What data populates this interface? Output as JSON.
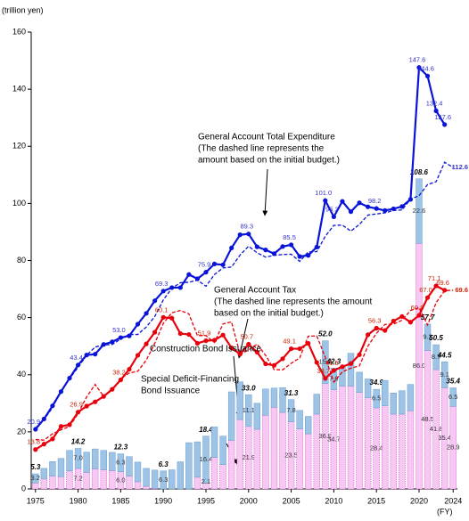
{
  "chart_data": {
    "type": "combo",
    "y_unit": "(trillion yen)",
    "x_unit": "(FY)",
    "x": [
      1975,
      1976,
      1977,
      1978,
      1979,
      1980,
      1981,
      1982,
      1983,
      1984,
      1985,
      1986,
      1987,
      1988,
      1989,
      1990,
      1991,
      1992,
      1993,
      1994,
      1995,
      1996,
      1997,
      1998,
      1999,
      2000,
      2001,
      2002,
      2003,
      2004,
      2005,
      2006,
      2007,
      2008,
      2009,
      2010,
      2011,
      2012,
      2013,
      2014,
      2015,
      2016,
      2017,
      2018,
      2019,
      2020,
      2021,
      2022,
      2023,
      2024
    ],
    "xlim": [
      1974.5,
      2024.5
    ],
    "xticks": [
      1975,
      1980,
      1985,
      1990,
      1995,
      2000,
      2005,
      2010,
      2015,
      2020,
      2024
    ],
    "ylim": [
      0,
      160
    ],
    "yticks": [
      0,
      20,
      40,
      60,
      80,
      100,
      120,
      140,
      160
    ],
    "series": [
      {
        "kind": "line",
        "style": "solid",
        "color": "#0a14d8",
        "label_color": "#3333cc",
        "values": [
          20.9,
          24.5,
          29.1,
          34.1,
          38.8,
          43.4,
          46.9,
          47.2,
          50.6,
          51.5,
          53.0,
          53.6,
          57.7,
          61.5,
          65.9,
          69.3,
          70.5,
          70.5,
          75.1,
          73.6,
          75.9,
          78.8,
          78.5,
          84.4,
          89.0,
          89.3,
          84.8,
          83.7,
          82.4,
          84.9,
          85.5,
          81.4,
          81.8,
          84.7,
          101.0,
          95.3,
          100.7,
          97.1,
          100.2,
          98.8,
          98.2,
          97.5,
          98.1,
          98.9,
          101.4,
          147.6,
          144.6,
          132.4,
          127.6,
          null
        ],
        "value_labels": [
          "20.9",
          null,
          null,
          null,
          null,
          "43.4",
          null,
          null,
          null,
          null,
          "53.0",
          null,
          null,
          null,
          null,
          "69.3",
          null,
          null,
          null,
          null,
          "75.9",
          null,
          null,
          null,
          null,
          "89.3",
          null,
          null,
          null,
          null,
          "85.5",
          null,
          null,
          null,
          "101.0",
          "95.3",
          null,
          null,
          null,
          null,
          "98.2",
          null,
          null,
          null,
          null,
          "147.6",
          "144.6",
          "132.4",
          "127.6",
          null
        ]
      },
      {
        "kind": "line",
        "style": "dashed",
        "color": "#0a14d8",
        "label_color": "#3333cc",
        "values": [
          21.3,
          24.3,
          28.5,
          34.3,
          38.6,
          42.6,
          46.8,
          49.7,
          50.4,
          50.6,
          52.5,
          54.1,
          54.1,
          56.7,
          60.4,
          66.2,
          70.3,
          72.2,
          72.4,
          73.1,
          71.0,
          75.1,
          77.4,
          77.7,
          81.9,
          85.0,
          82.7,
          81.2,
          81.8,
          82.1,
          82.2,
          79.7,
          83.0,
          83.1,
          88.5,
          92.3,
          92.4,
          90.3,
          92.6,
          95.9,
          96.3,
          96.7,
          97.5,
          97.7,
          101.5,
          102.7,
          106.6,
          107.6,
          114.4,
          112.6
        ],
        "value_labels": [
          null,
          null,
          null,
          null,
          null,
          null,
          null,
          null,
          null,
          null,
          null,
          null,
          null,
          null,
          null,
          null,
          null,
          null,
          null,
          null,
          null,
          null,
          null,
          null,
          null,
          null,
          null,
          null,
          null,
          null,
          null,
          null,
          null,
          null,
          null,
          null,
          null,
          null,
          null,
          null,
          null,
          null,
          null,
          null,
          null,
          null,
          null,
          null,
          null,
          "112.6"
        ]
      },
      {
        "kind": "line",
        "style": "solid",
        "color": "#e8000b",
        "label_color": "#cc2200",
        "values": [
          13.8,
          15.7,
          17.5,
          21.9,
          22.5,
          26.9,
          29.0,
          30.5,
          32.4,
          34.9,
          38.2,
          41.9,
          46.8,
          50.8,
          54.9,
          60.1,
          59.8,
          54.4,
          54.1,
          51.0,
          51.9,
          52.1,
          53.9,
          49.4,
          47.2,
          50.7,
          47.9,
          43.8,
          43.3,
          45.6,
          49.1,
          49.1,
          51.0,
          44.3,
          38.7,
          41.5,
          42.8,
          43.9,
          47.0,
          54.0,
          56.3,
          55.5,
          58.8,
          60.4,
          58.4,
          60.8,
          67.0,
          71.1,
          69.6,
          null
        ],
        "value_labels": [
          "13.8",
          null,
          null,
          null,
          null,
          "26.9",
          null,
          null,
          null,
          null,
          "38.2",
          null,
          null,
          null,
          null,
          "60.1",
          null,
          null,
          null,
          null,
          "51.9",
          null,
          null,
          null,
          null,
          "50.7",
          null,
          null,
          null,
          null,
          "49.1",
          null,
          null,
          null,
          "38.7",
          "41.5",
          null,
          null,
          null,
          null,
          "56.3",
          null,
          null,
          null,
          null,
          "60.8",
          "67.0",
          "71.1",
          "69.6",
          null
        ]
      },
      {
        "kind": "line",
        "style": "dashed",
        "color": "#e8000b",
        "label_color": "#cc2200",
        "values": [
          17.3,
          17.1,
          19.3,
          20.7,
          21.9,
          26.4,
          32.2,
          36.6,
          32.4,
          34.6,
          38.6,
          40.6,
          41.2,
          45.1,
          51.0,
          58.0,
          61.7,
          62.5,
          61.3,
          53.7,
          53.7,
          51.3,
          57.8,
          58.5,
          47.1,
          48.7,
          50.7,
          46.8,
          41.8,
          41.7,
          44.0,
          45.9,
          53.5,
          53.6,
          46.1,
          37.4,
          41.0,
          42.3,
          43.1,
          50.0,
          54.5,
          57.6,
          57.7,
          59.1,
          62.5,
          63.5,
          57.4,
          65.2,
          69.4,
          69.6
        ],
        "value_labels": [
          null,
          null,
          null,
          null,
          null,
          null,
          null,
          null,
          null,
          null,
          null,
          null,
          null,
          null,
          null,
          null,
          null,
          null,
          null,
          null,
          null,
          null,
          null,
          null,
          null,
          null,
          null,
          null,
          null,
          null,
          null,
          null,
          null,
          null,
          null,
          null,
          null,
          null,
          null,
          null,
          null,
          null,
          null,
          null,
          null,
          null,
          null,
          null,
          null,
          "69.6"
        ]
      }
    ],
    "bars": {
      "deficit": {
        "color": "#f7c8f2",
        "edge": "#cc33cc",
        "values": [
          2.1,
          3.5,
          4.5,
          4.3,
          6.3,
          7.2,
          5.8,
          7.0,
          6.7,
          6.4,
          6.0,
          4.5,
          2.5,
          0.9,
          0.2,
          0,
          0,
          0,
          0,
          4.1,
          2.1,
          11.0,
          8.5,
          17.0,
          24.3,
          21.9,
          20.9,
          25.8,
          28.6,
          26.8,
          23.5,
          21.0,
          19.3,
          26.2,
          36.9,
          34.7,
          36.0,
          36.0,
          33.8,
          31.9,
          28.4,
          29.1,
          26.2,
          26.2,
          27.4,
          86.0,
          48.5,
          41.8,
          35.4,
          28.9
        ],
        "value_labels": [
          null,
          null,
          null,
          null,
          null,
          "7.2",
          null,
          null,
          null,
          null,
          "6.0",
          null,
          null,
          null,
          null,
          null,
          null,
          null,
          null,
          null,
          "2.1",
          null,
          null,
          null,
          null,
          "21.9",
          null,
          null,
          null,
          null,
          "23.5",
          null,
          null,
          null,
          "36.9",
          "34.7",
          null,
          null,
          null,
          null,
          "28.4",
          null,
          null,
          null,
          null,
          "86.0",
          "48.5",
          "41.8",
          "35.4",
          "28.9"
        ]
      },
      "construction": {
        "color": "#9dc3e6",
        "edge": "#6a9ccc",
        "values": [
          3.2,
          3.7,
          5.1,
          6.4,
          7.2,
          7.0,
          7.1,
          7.0,
          6.8,
          6.4,
          6.3,
          6.8,
          6.9,
          6.3,
          6.4,
          6.3,
          6.7,
          9.5,
          16.2,
          12.4,
          16.4,
          10.7,
          10.0,
          17.0,
          13.2,
          11.1,
          9.1,
          9.2,
          6.7,
          8.7,
          7.8,
          6.5,
          6.1,
          7.0,
          15.0,
          7.6,
          6.8,
          11.5,
          7.1,
          6.6,
          6.5,
          8.9,
          7.4,
          8.2,
          9.2,
          22.6,
          9.2,
          8.7,
          9.1,
          6.5
        ],
        "value_labels": [
          "3.2",
          null,
          null,
          null,
          null,
          "7.0",
          null,
          null,
          null,
          null,
          "6.3",
          null,
          null,
          null,
          null,
          "6.3",
          null,
          null,
          null,
          null,
          "16.4",
          null,
          null,
          null,
          null,
          "11.1",
          null,
          null,
          null,
          null,
          "7.8",
          null,
          null,
          null,
          "15.0",
          "7.6",
          null,
          null,
          null,
          null,
          "6.5",
          null,
          null,
          null,
          null,
          "22.6",
          "9.2",
          "8.7",
          "9.1",
          "6.5"
        ]
      },
      "total_labels": [
        "5.3",
        null,
        null,
        null,
        null,
        "14.2",
        null,
        null,
        null,
        null,
        "12.3",
        null,
        null,
        null,
        null,
        "6.3",
        null,
        null,
        null,
        null,
        "18.4",
        null,
        null,
        null,
        null,
        "33.0",
        null,
        null,
        null,
        null,
        "31.3",
        null,
        null,
        null,
        "52.0",
        "42.3",
        null,
        null,
        null,
        null,
        "34.9",
        null,
        null,
        null,
        null,
        "108.6",
        "57.7",
        "50.5",
        "44.5",
        "35.4"
      ]
    },
    "annotations": {
      "expenditure": [
        "General Account Total Expenditure",
        "(The dashed line represents the",
        "amount based on the initial budget.)"
      ],
      "tax": [
        "General Account Tax",
        "(The dashed line represents the amount",
        "based on the initial budget.)"
      ],
      "construction": [
        "Construction Bond Issuance"
      ],
      "deficit": [
        "Special Deficit-Financing",
        "Bond Issuance"
      ]
    }
  }
}
